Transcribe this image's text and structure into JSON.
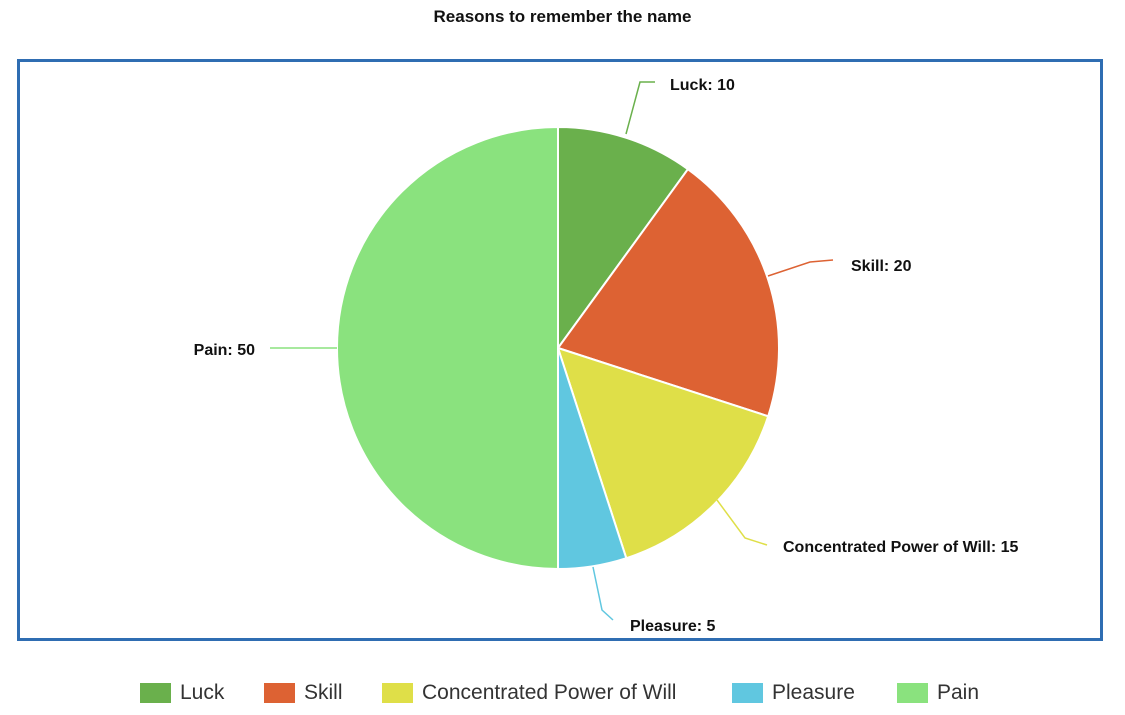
{
  "chart_data": {
    "type": "pie",
    "title": "Reasons to remember the name",
    "slices": [
      {
        "label": "Luck",
        "value": 10,
        "color": "#6ab04c",
        "data_label": "Luck: 10"
      },
      {
        "label": "Skill",
        "value": 20,
        "color": "#dd6233",
        "data_label": "Skill: 20"
      },
      {
        "label": "Concentrated Power of Will",
        "value": 15,
        "color": "#dfdf48",
        "data_label": "Concentrated Power of Will: 15"
      },
      {
        "label": "Pleasure",
        "value": 5,
        "color": "#60c7e0",
        "data_label": "Pleasure: 5"
      },
      {
        "label": "Pain",
        "value": 50,
        "color": "#8ae27e",
        "data_label": "Pain: 50"
      }
    ],
    "legend_position": "bottom",
    "frame_color": "#2f6db2"
  }
}
